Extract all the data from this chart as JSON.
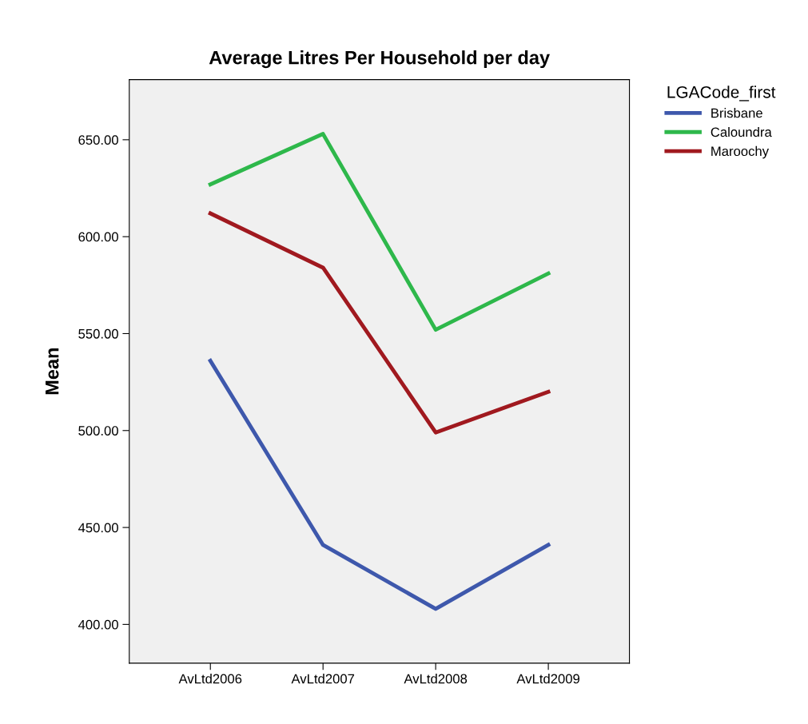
{
  "chart_data": {
    "type": "line",
    "title": "Average Litres Per Household per day",
    "ylabel": "Mean",
    "legend_title": "LGACode_first",
    "legend": "top right",
    "categories": [
      "AvLtd2006",
      "AvLtd2007",
      "AvLtd2008",
      "AvLtd2009"
    ],
    "series": [
      {
        "name": "Brisbane",
        "color": "#3e58ac",
        "values": [
          536,
          441,
          408,
          441
        ]
      },
      {
        "name": "Caloundra",
        "color": "#2eb84b",
        "values": [
          627,
          653,
          552,
          581
        ]
      },
      {
        "name": "Maroochy",
        "color": "#a0191f",
        "values": [
          612,
          584,
          499,
          520
        ]
      }
    ],
    "ylim": [
      380,
      681
    ],
    "yticks": [
      {
        "value": 400,
        "label": "400.00"
      },
      {
        "value": 450,
        "label": "450.00"
      },
      {
        "value": 500,
        "label": "500.00"
      },
      {
        "value": 550,
        "label": "550.00"
      },
      {
        "value": 600,
        "label": "600.00"
      },
      {
        "value": 650,
        "label": "650.00"
      }
    ],
    "grid": false,
    "marker": "none",
    "line_style": "solid"
  }
}
